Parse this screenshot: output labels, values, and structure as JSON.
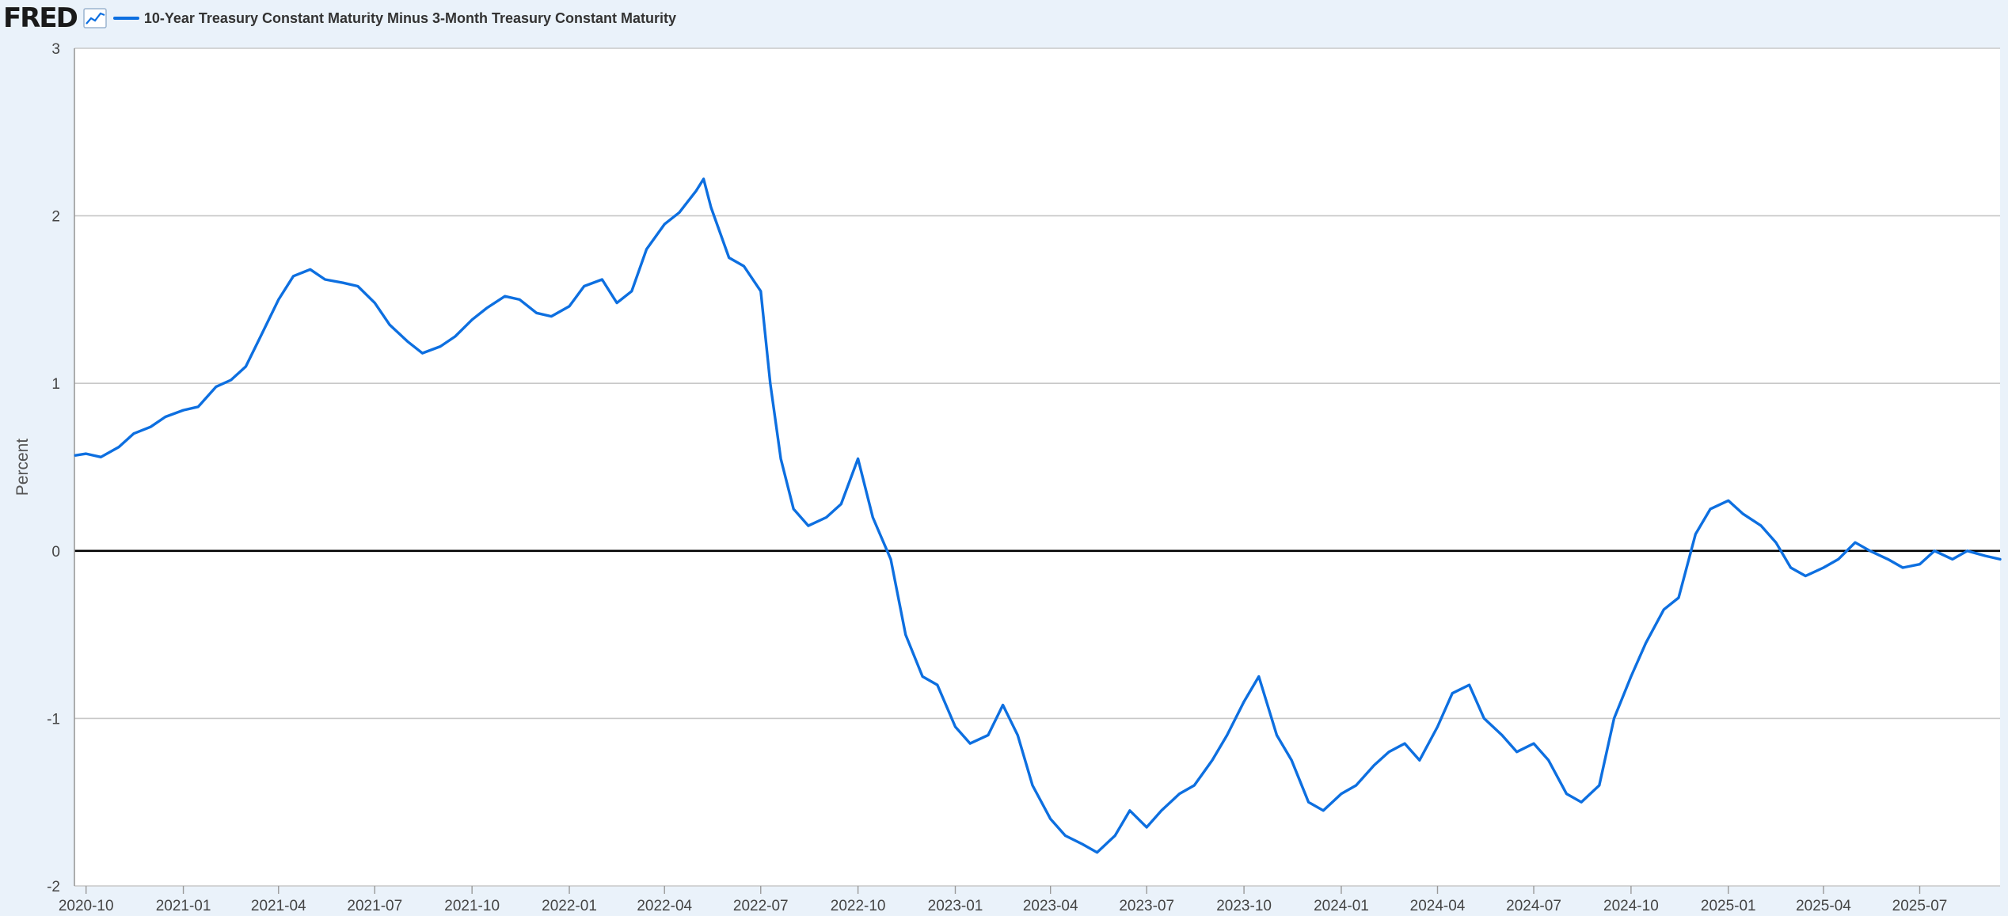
{
  "brand": {
    "logo_text": "FRED"
  },
  "chart_data": {
    "type": "line",
    "title": "",
    "xlabel": "",
    "ylabel": "Percent",
    "ylim": [
      -2,
      3
    ],
    "yticks": [
      -2,
      -1,
      0,
      1,
      2,
      3
    ],
    "grid": true,
    "legend_placement": "top-left",
    "xlim": [
      "2020-09-20",
      "2025-09-15"
    ],
    "xticks": [
      "2020-10",
      "2021-01",
      "2021-04",
      "2021-07",
      "2021-10",
      "2022-01",
      "2022-04",
      "2022-07",
      "2022-10",
      "2023-01",
      "2023-04",
      "2023-07",
      "2023-10",
      "2024-01",
      "2024-04",
      "2024-07",
      "2024-10",
      "2025-01",
      "2025-04",
      "2025-07"
    ],
    "colors": {
      "line": "#0d6fe0",
      "grid": "#c8c8c8",
      "zero_line": "#000000",
      "plot_bg": "#ffffff",
      "page_bg": "#eaf2fa"
    },
    "series": [
      {
        "name": "10-Year Treasury Constant Maturity Minus 3-Month Treasury Constant Maturity",
        "x": [
          "2020-09-21",
          "2020-10-01",
          "2020-10-15",
          "2020-11-01",
          "2020-11-15",
          "2020-12-01",
          "2020-12-15",
          "2021-01-01",
          "2021-01-15",
          "2021-02-01",
          "2021-02-15",
          "2021-03-01",
          "2021-03-15",
          "2021-04-01",
          "2021-04-15",
          "2021-05-01",
          "2021-05-15",
          "2021-06-01",
          "2021-06-15",
          "2021-07-01",
          "2021-07-15",
          "2021-08-01",
          "2021-08-15",
          "2021-09-01",
          "2021-09-15",
          "2021-10-01",
          "2021-10-15",
          "2021-11-01",
          "2021-11-15",
          "2021-12-01",
          "2021-12-15",
          "2022-01-01",
          "2022-01-15",
          "2022-02-01",
          "2022-02-15",
          "2022-03-01",
          "2022-03-15",
          "2022-04-01",
          "2022-04-15",
          "2022-05-01",
          "2022-05-08",
          "2022-05-15",
          "2022-06-01",
          "2022-06-15",
          "2022-07-01",
          "2022-07-10",
          "2022-07-20",
          "2022-08-01",
          "2022-08-15",
          "2022-09-01",
          "2022-09-15",
          "2022-10-01",
          "2022-10-15",
          "2022-11-01",
          "2022-11-15",
          "2022-12-01",
          "2022-12-15",
          "2023-01-01",
          "2023-01-15",
          "2023-02-01",
          "2023-02-15",
          "2023-03-01",
          "2023-03-15",
          "2023-04-01",
          "2023-04-15",
          "2023-05-01",
          "2023-05-15",
          "2023-06-01",
          "2023-06-15",
          "2023-07-01",
          "2023-07-15",
          "2023-08-01",
          "2023-08-15",
          "2023-09-01",
          "2023-09-15",
          "2023-10-01",
          "2023-10-15",
          "2023-11-01",
          "2023-11-15",
          "2023-12-01",
          "2023-12-15",
          "2024-01-01",
          "2024-01-15",
          "2024-02-01",
          "2024-02-15",
          "2024-03-01",
          "2024-03-15",
          "2024-04-01",
          "2024-04-15",
          "2024-05-01",
          "2024-05-15",
          "2024-06-01",
          "2024-06-15",
          "2024-07-01",
          "2024-07-15",
          "2024-08-01",
          "2024-08-15",
          "2024-09-01",
          "2024-09-15",
          "2024-10-01",
          "2024-10-15",
          "2024-11-01",
          "2024-11-15",
          "2024-12-01",
          "2024-12-15",
          "2025-01-01",
          "2025-01-15",
          "2025-02-01",
          "2025-02-15",
          "2025-03-01",
          "2025-03-15",
          "2025-04-01",
          "2025-04-15",
          "2025-05-01",
          "2025-05-15",
          "2025-06-01",
          "2025-06-15",
          "2025-07-01",
          "2025-07-15",
          "2025-08-01",
          "2025-08-15",
          "2025-09-01",
          "2025-09-15"
        ],
        "y": [
          0.57,
          0.58,
          0.56,
          0.62,
          0.7,
          0.74,
          0.8,
          0.84,
          0.86,
          0.98,
          1.02,
          1.1,
          1.28,
          1.5,
          1.64,
          1.68,
          1.62,
          1.6,
          1.58,
          1.48,
          1.35,
          1.25,
          1.18,
          1.22,
          1.28,
          1.38,
          1.45,
          1.52,
          1.5,
          1.42,
          1.4,
          1.46,
          1.58,
          1.62,
          1.48,
          1.55,
          1.8,
          1.95,
          2.02,
          2.15,
          2.22,
          2.05,
          1.75,
          1.7,
          1.55,
          1.0,
          0.55,
          0.25,
          0.15,
          0.2,
          0.28,
          0.55,
          0.2,
          -0.05,
          -0.5,
          -0.75,
          -0.8,
          -1.05,
          -1.15,
          -1.1,
          -0.92,
          -1.1,
          -1.4,
          -1.6,
          -1.7,
          -1.75,
          -1.8,
          -1.7,
          -1.55,
          -1.65,
          -1.55,
          -1.45,
          -1.4,
          -1.25,
          -1.1,
          -0.9,
          -0.75,
          -1.1,
          -1.25,
          -1.5,
          -1.55,
          -1.45,
          -1.4,
          -1.28,
          -1.2,
          -1.15,
          -1.25,
          -1.05,
          -0.85,
          -0.8,
          -1.0,
          -1.1,
          -1.2,
          -1.15,
          -1.25,
          -1.45,
          -1.5,
          -1.4,
          -1.0,
          -0.75,
          -0.55,
          -0.35,
          -0.28,
          0.1,
          0.25,
          0.3,
          0.22,
          0.15,
          0.05,
          -0.1,
          -0.15,
          -0.1,
          -0.05,
          0.05,
          0.0,
          -0.05,
          -0.1,
          -0.08,
          0.0,
          -0.05,
          0.0,
          -0.03,
          -0.05
        ]
      }
    ]
  }
}
